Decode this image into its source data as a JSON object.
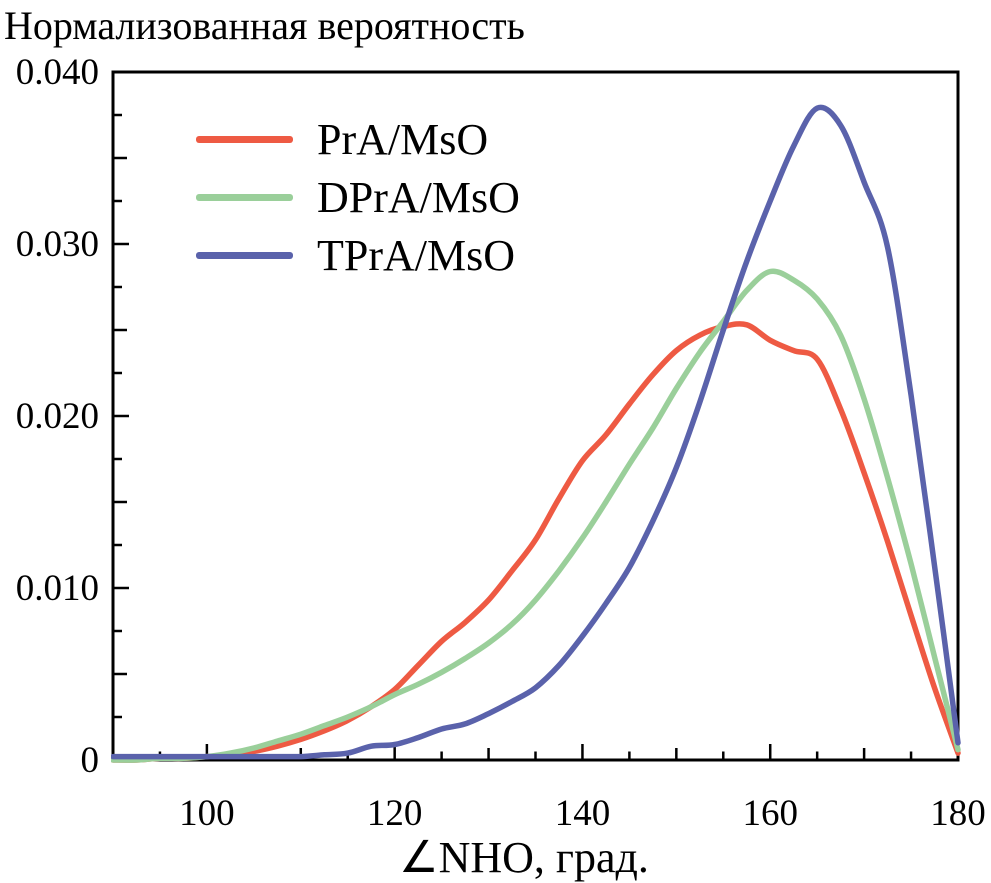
{
  "figure": {
    "title": "Нормализованная вероятность",
    "x_axis_title": "∠NHO, град.",
    "background_color": "#ffffff",
    "frame_color": "#000000",
    "text_color": "#000000"
  },
  "legend": {
    "items": [
      {
        "label": "PrA/MsO",
        "color": "#ee5a43"
      },
      {
        "label": "DPrA/MsO",
        "color": "#9acf9a"
      },
      {
        "label": "TPrA/MsO",
        "color": "#5a62ab"
      }
    ]
  },
  "chart_data": {
    "type": "line",
    "title": "Нормализованная вероятность",
    "xlabel": "∠NHO, град.",
    "ylabel": "Нормализованная вероятность",
    "xlim": [
      90,
      180
    ],
    "ylim": [
      0,
      0.04
    ],
    "grid": false,
    "legend_position": "upper-left-inside",
    "x_major_ticks": [
      100,
      120,
      140,
      160,
      180
    ],
    "x_tick_labels": [
      "100",
      "120",
      "140",
      "160",
      "180"
    ],
    "x_minor_step": 5,
    "y_major_ticks": [
      0,
      0.01,
      0.02,
      0.03,
      0.04
    ],
    "y_tick_labels": [
      "0",
      "0.010",
      "0.020",
      "0.030",
      "0.040"
    ],
    "y_minor_step": 0.0025,
    "x": [
      90,
      92.5,
      95,
      97.5,
      100,
      102.5,
      105,
      107.5,
      110,
      112.5,
      115,
      117.5,
      120,
      122.5,
      125,
      127.5,
      130,
      132.5,
      135,
      137.5,
      140,
      142.5,
      145,
      147.5,
      150,
      152.5,
      155,
      157.5,
      160,
      162.5,
      165,
      167.5,
      170,
      172.5,
      175,
      177.5,
      180
    ],
    "series": [
      {
        "name": "PrA/MsO",
        "color": "#ee5a43",
        "peak": {
          "x": 156.5,
          "y": 0.0253
        },
        "values": [
          0.0,
          0.0,
          0.0001,
          0.0001,
          0.0002,
          0.0003,
          0.0005,
          0.0008,
          0.0012,
          0.0017,
          0.0023,
          0.0031,
          0.0041,
          0.0055,
          0.0069,
          0.008,
          0.0093,
          0.011,
          0.0128,
          0.0152,
          0.0174,
          0.0189,
          0.0207,
          0.0224,
          0.0238,
          0.0247,
          0.0252,
          0.0253,
          0.0244,
          0.0238,
          0.0233,
          0.0204,
          0.0167,
          0.0127,
          0.0084,
          0.0042,
          0.0004
        ]
      },
      {
        "name": "DPrA/MsO",
        "color": "#9acf9a",
        "peak": {
          "x": 159.5,
          "y": 0.0284
        },
        "values": [
          0.0,
          0.0,
          0.0001,
          0.0001,
          0.0002,
          0.0004,
          0.0007,
          0.0011,
          0.0015,
          0.002,
          0.0025,
          0.0031,
          0.0038,
          0.0044,
          0.0051,
          0.0059,
          0.0068,
          0.0079,
          0.0093,
          0.011,
          0.0129,
          0.015,
          0.0172,
          0.0193,
          0.0216,
          0.0237,
          0.0255,
          0.0273,
          0.0284,
          0.0279,
          0.0268,
          0.0247,
          0.021,
          0.0164,
          0.0114,
          0.006,
          0.0006
        ]
      },
      {
        "name": "TPrA/MsO",
        "color": "#5a62ab",
        "peak": {
          "x": 165.4,
          "y": 0.038
        },
        "values": [
          0.0002,
          0.0002,
          0.0002,
          0.0002,
          0.0002,
          0.0002,
          0.0002,
          0.0002,
          0.0002,
          0.0003,
          0.0004,
          0.0008,
          0.0009,
          0.0013,
          0.0018,
          0.0021,
          0.0027,
          0.0034,
          0.0042,
          0.0055,
          0.0072,
          0.0091,
          0.0112,
          0.0139,
          0.017,
          0.0208,
          0.025,
          0.029,
          0.0325,
          0.0357,
          0.0379,
          0.0369,
          0.0336,
          0.0298,
          0.0212,
          0.0113,
          0.001
        ]
      }
    ]
  }
}
